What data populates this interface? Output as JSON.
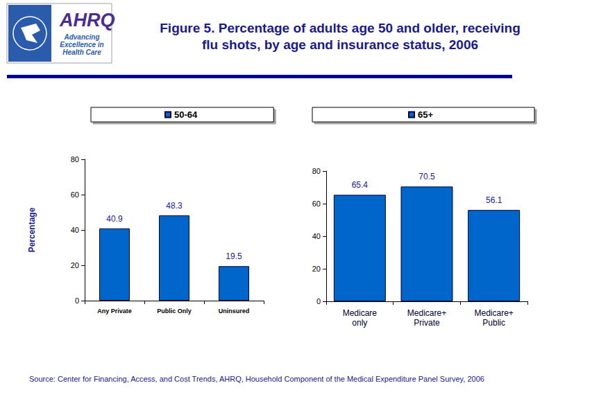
{
  "title": "Figure 5. Percentage of adults age 50 and older, receiving\nflu shots, by age and insurance status, 2006",
  "source": "Source: Center for Financing, Access, and Cost Trends, AHRQ, Household Component of the Medical Expenditure Panel Survey, 2006",
  "logo": {
    "name": "AHRQ",
    "tagline": "Advancing\nExcellence in\nHealth Care"
  },
  "chart_data": [
    {
      "type": "bar",
      "categories": [
        "Any Private",
        "Public Only",
        "Uninsured"
      ],
      "series": [
        {
          "name": "50-64",
          "color": "#0066CC",
          "values": [
            40.9,
            48.3,
            19.5
          ]
        }
      ],
      "ylabel": "Percentage",
      "ylim": [
        0,
        80
      ],
      "yticks": [
        0,
        20,
        40,
        60,
        80
      ],
      "grid": false,
      "legend": "top",
      "data_labels": true
    },
    {
      "type": "bar",
      "categories": [
        "Medicare\nonly",
        "Medicare+\nPrivate",
        "Medicare+\nPublic"
      ],
      "series": [
        {
          "name": "65+",
          "color": "#0066CC",
          "values": [
            65.4,
            70.5,
            56.1
          ]
        }
      ],
      "ylim": [
        0,
        80
      ],
      "yticks": [
        0,
        20,
        40,
        60,
        80
      ],
      "grid": false,
      "legend": "top",
      "data_labels": true
    }
  ]
}
